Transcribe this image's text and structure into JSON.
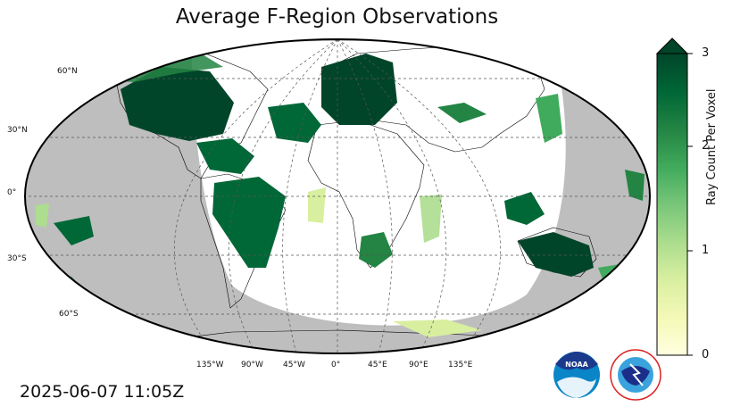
{
  "title": "Average F-Region Observations",
  "timestamp": "2025-06-07 11:05Z",
  "colorbar": {
    "label": "Ray Count Per Voxel",
    "ticks": [
      "0",
      "1",
      "2",
      "3"
    ],
    "colors": [
      "#ffffe0",
      "#f5f9b8",
      "#d9efa0",
      "#addd8e",
      "#78c679",
      "#41ab5d",
      "#238443",
      "#006837",
      "#004529"
    ]
  },
  "lat_labels": [
    "60°N",
    "30°N",
    "0°",
    "30°S",
    "60°S"
  ],
  "lon_labels": [
    "135°W",
    "90°W",
    "45°W",
    "0°",
    "45°E",
    "90°E",
    "135°E"
  ],
  "colors": {
    "night_side": "#bebebe",
    "day_side": "#ffffff",
    "coast": "#000000"
  },
  "icons": [
    "noaa-logo-icon",
    "nws-logo-icon"
  ]
}
